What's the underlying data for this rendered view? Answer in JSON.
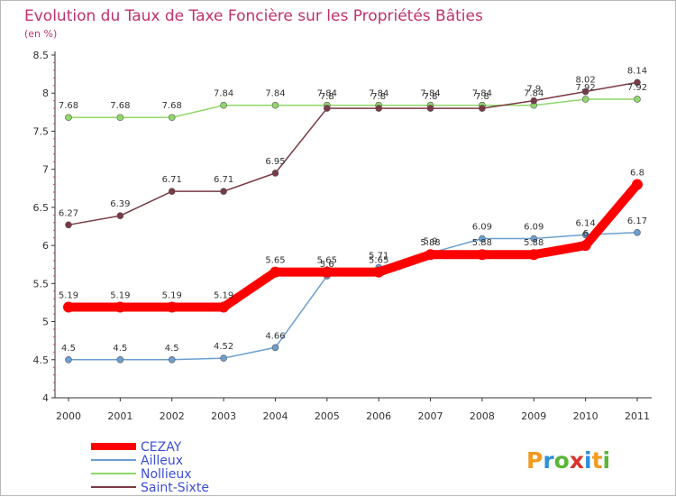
{
  "chart_data": {
    "type": "line",
    "title": "Evolution du Taux de Taxe Foncière sur les Propriétés Bâties",
    "ylabel": "(en %)",
    "xlabel": "",
    "ylim": [
      4,
      8.5
    ],
    "yticks": [
      "4",
      "4.5",
      "5",
      "5.5",
      "6",
      "6.5",
      "7",
      "7.5",
      "8",
      "8.5"
    ],
    "categories": [
      "2000",
      "2001",
      "2002",
      "2003",
      "2004",
      "2005",
      "2006",
      "2007",
      "2008",
      "2009",
      "2010",
      "2011"
    ],
    "series": [
      {
        "name": "CEZAY",
        "color": "#ff0000",
        "values": [
          5.19,
          5.19,
          5.19,
          5.19,
          5.65,
          5.65,
          5.65,
          5.88,
          5.88,
          5.88,
          6,
          6.8
        ],
        "labels": [
          "5.19",
          "5.19",
          "5.19",
          "5.19",
          "5.65",
          "5.65",
          "5.65",
          "5.88",
          "5.88",
          "5.88",
          "6",
          "6.8"
        ]
      },
      {
        "name": "Ailleux",
        "color": "#6b9fd0",
        "values": [
          4.5,
          4.5,
          4.5,
          4.52,
          4.66,
          5.6,
          5.71,
          5.9,
          6.09,
          6.09,
          6.14,
          6.17
        ],
        "labels": [
          "4.5",
          "4.5",
          "4.5",
          "4.52",
          "4.66",
          "5.6",
          "5.71",
          "5.9",
          "6.09",
          "6.09",
          "6.14",
          "6.17"
        ]
      },
      {
        "name": "Nollieux",
        "color": "#8fd86a",
        "values": [
          7.68,
          7.68,
          7.68,
          7.84,
          7.84,
          7.84,
          7.84,
          7.84,
          7.84,
          7.84,
          7.92,
          7.92
        ],
        "labels": [
          "7.68",
          "7.68",
          "7.68",
          "7.84",
          "7.84",
          "7.84",
          "7.84",
          "7.84",
          "7.84",
          "7.84",
          "7.92",
          "7.92"
        ]
      },
      {
        "name": "Saint-Sixte",
        "color": "#7a3a45",
        "values": [
          6.27,
          6.39,
          6.71,
          6.71,
          6.95,
          7.8,
          7.8,
          7.8,
          7.8,
          7.9,
          8.02,
          8.14
        ],
        "labels": [
          "6.27",
          "6.39",
          "6.71",
          "6.71",
          "6.95",
          "7.8",
          "7.8",
          "7.8",
          "7.8",
          "7.9",
          "8.02",
          "8.14"
        ]
      }
    ],
    "legend_position": "bottom-left",
    "grid": false
  },
  "logo": {
    "text": "Proxiti"
  }
}
